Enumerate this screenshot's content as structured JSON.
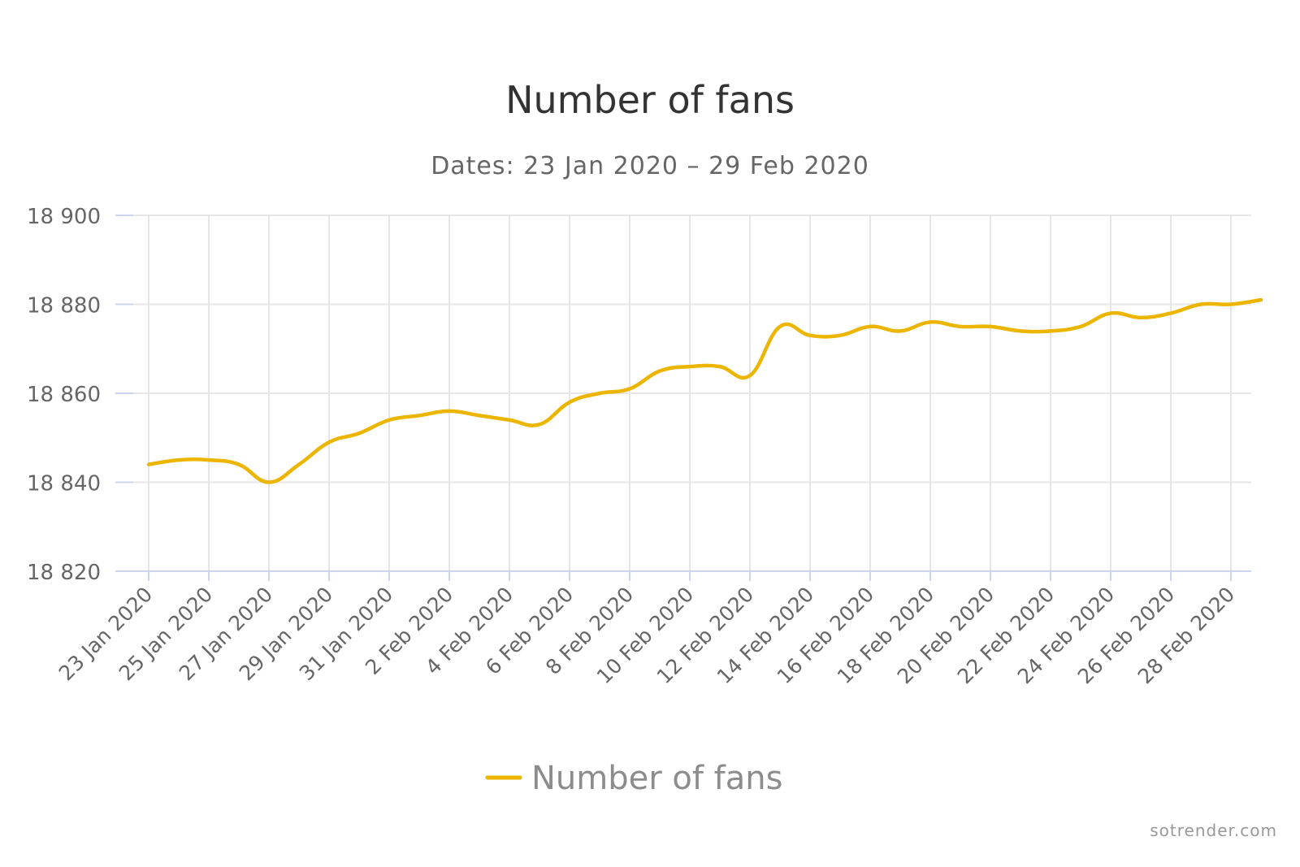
{
  "colors": {
    "series": "#ECB500",
    "grid": "#E6E6E6",
    "axis": "#CCD6EB",
    "title": "#333333",
    "subtitle": "#666666",
    "tick_label": "#666666",
    "legend_text": "#8C8C8C",
    "credits": "#999999"
  },
  "credits": "sotrender.com",
  "chart_data": {
    "type": "line",
    "title": "Number of fans",
    "subtitle": "Dates: 23 Jan 2020 – 29 Feb 2020",
    "xlabel": "",
    "ylabel": "",
    "ylim": [
      18820,
      18900
    ],
    "y_ticks": [
      18820,
      18840,
      18860,
      18880,
      18900
    ],
    "y_tick_labels": [
      "18 820",
      "18 840",
      "18 860",
      "18 880",
      "18 900"
    ],
    "x_tick_labels": [
      "23 Jan 2020",
      "25 Jan 2020",
      "27 Jan 2020",
      "29 Jan 2020",
      "31 Jan 2020",
      "2 Feb 2020",
      "4 Feb 2020",
      "6 Feb 2020",
      "8 Feb 2020",
      "10 Feb 2020",
      "12 Feb 2020",
      "14 Feb 2020",
      "16 Feb 2020",
      "18 Feb 2020",
      "20 Feb 2020",
      "22 Feb 2020",
      "24 Feb 2020",
      "26 Feb 2020",
      "28 Feb 2020"
    ],
    "x": [
      "23 Jan 2020",
      "24 Jan 2020",
      "25 Jan 2020",
      "26 Jan 2020",
      "27 Jan 2020",
      "28 Jan 2020",
      "29 Jan 2020",
      "30 Jan 2020",
      "31 Jan 2020",
      "1 Feb 2020",
      "2 Feb 2020",
      "3 Feb 2020",
      "4 Feb 2020",
      "5 Feb 2020",
      "6 Feb 2020",
      "7 Feb 2020",
      "8 Feb 2020",
      "9 Feb 2020",
      "10 Feb 2020",
      "11 Feb 2020",
      "12 Feb 2020",
      "13 Feb 2020",
      "14 Feb 2020",
      "15 Feb 2020",
      "16 Feb 2020",
      "17 Feb 2020",
      "18 Feb 2020",
      "19 Feb 2020",
      "20 Feb 2020",
      "21 Feb 2020",
      "22 Feb 2020",
      "23 Feb 2020",
      "24 Feb 2020",
      "25 Feb 2020",
      "26 Feb 2020",
      "27 Feb 2020",
      "28 Feb 2020",
      "29 Feb 2020"
    ],
    "grid": true,
    "legend_position": "bottom-center",
    "series": [
      {
        "name": "Number of fans",
        "values": [
          18844,
          18845,
          18845,
          18844,
          18840,
          18844,
          18849,
          18851,
          18854,
          18855,
          18856,
          18855,
          18854,
          18853,
          18858,
          18860,
          18861,
          18865,
          18866,
          18866,
          18864,
          18875,
          18873,
          18873,
          18875,
          18874,
          18876,
          18875,
          18875,
          18874,
          18874,
          18875,
          18878,
          18877,
          18878,
          18880,
          18880,
          18881
        ]
      }
    ]
  }
}
